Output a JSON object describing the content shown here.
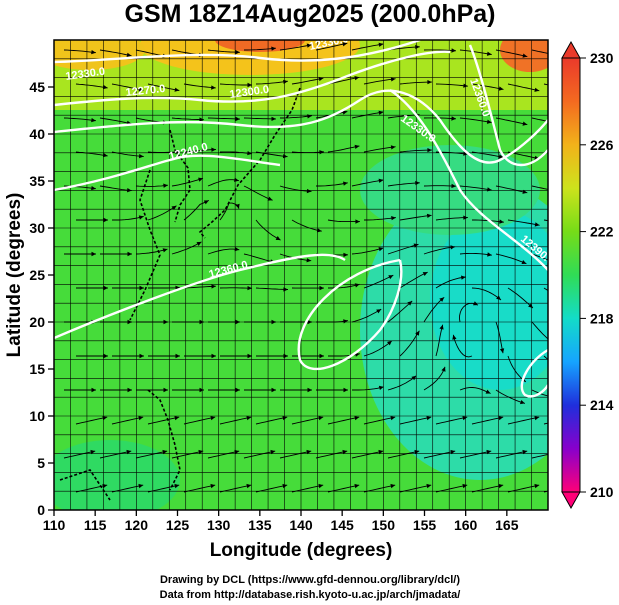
{
  "title": "GSM 18Z14Aug2025 (200.0hPa)",
  "x_axis": {
    "label": "Longitude (degrees)",
    "range": [
      110,
      170
    ],
    "ticks": [
      "110",
      "115",
      "120",
      "125",
      "130",
      "135",
      "140",
      "145",
      "150",
      "155",
      "160",
      "165"
    ]
  },
  "y_axis": {
    "label": "Latitude  (degrees)",
    "range": [
      0,
      50
    ],
    "ticks": [
      "0",
      "5",
      "10",
      "15",
      "20",
      "25",
      "30",
      "35",
      "40",
      "45"
    ]
  },
  "colorbar": {
    "range": [
      210,
      230
    ],
    "labels": [
      "230",
      "226",
      "222",
      "218",
      "214",
      "210"
    ],
    "colors": [
      "#ff0077",
      "#8800cc",
      "#1f2fdc",
      "#16a4ff",
      "#13dcc8",
      "#30dc56",
      "#76dc18",
      "#cde31c",
      "#f2b21a",
      "#f46a20",
      "#ea3a2b"
    ]
  },
  "contour_labels": [
    "12330.0",
    "12270.0",
    "12300.0",
    "12330.0",
    "12240.0",
    "12330.0",
    "12360.0",
    "12390.0",
    "12360.0"
  ],
  "credits": [
    "Drawing by DCL (https://www.gfd-dennou.org/library/dcl/)",
    "Data from http://database.rish.kyoto-u.ac.jp/arch/jmadata/"
  ]
}
